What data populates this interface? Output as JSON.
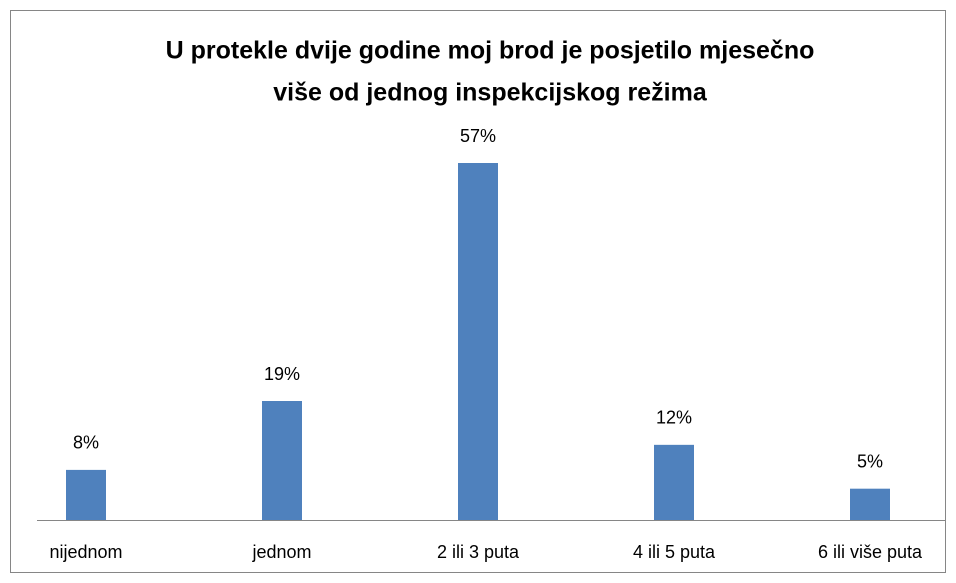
{
  "chart_data": {
    "type": "bar",
    "title": [
      "U protekle dvije godine moj brod je posjetilo mjesečno",
      "više od jednog inspekcijskog režima"
    ],
    "categories": [
      "nijednom",
      "jednom",
      "2 ili 3 puta",
      "4 ili 5 puta",
      "6 ili više puta"
    ],
    "values": [
      8,
      19,
      57,
      12,
      5
    ],
    "value_labels": [
      "8%",
      "19%",
      "57%",
      "12%",
      "5%"
    ],
    "color": "#4f81bd"
  }
}
